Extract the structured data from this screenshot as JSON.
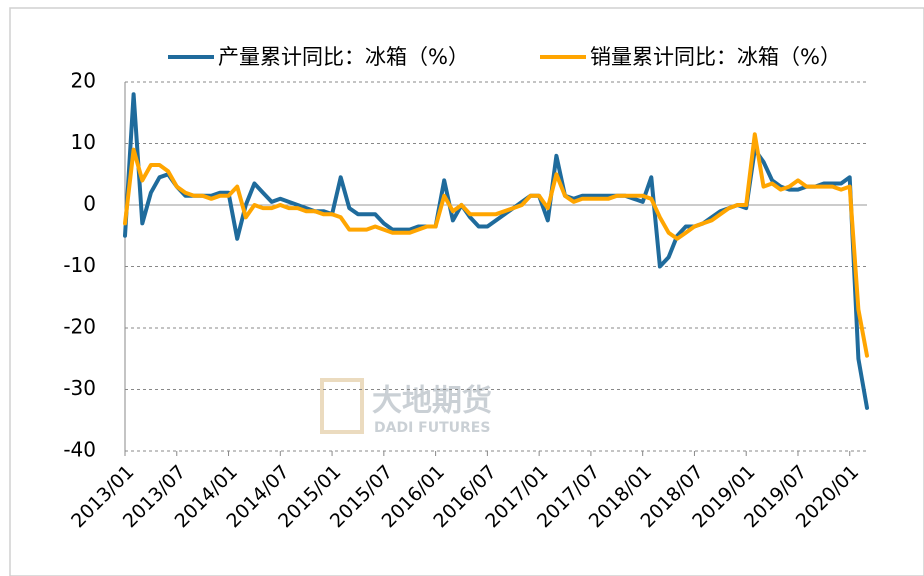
{
  "chart_data": {
    "type": "line",
    "categories": [
      "2013/01",
      null,
      null,
      null,
      null,
      null,
      "2013/07",
      null,
      null,
      null,
      null,
      null,
      "2014/01",
      null,
      null,
      null,
      null,
      null,
      "2014/07",
      null,
      null,
      null,
      null,
      null,
      "2015/01",
      null,
      null,
      null,
      null,
      null,
      "2015/07",
      null,
      null,
      null,
      null,
      null,
      "2016/01",
      null,
      null,
      null,
      null,
      null,
      "2016/07",
      null,
      null,
      null,
      null,
      null,
      "2017/01",
      null,
      null,
      null,
      null,
      null,
      "2017/07",
      null,
      null,
      null,
      null,
      null,
      "2018/01",
      null,
      null,
      null,
      null,
      null,
      "2018/07",
      null,
      null,
      null,
      null,
      null,
      "2019/01",
      null,
      null,
      null,
      null,
      null,
      "2019/07",
      null,
      null,
      null,
      null,
      null,
      "2020/01",
      null,
      null
    ],
    "series": [
      {
        "name": "产量累计同比：冰箱（%）",
        "color": "#1f6b9c",
        "values": [
          -5,
          18,
          -3,
          2,
          4.5,
          5,
          3,
          1.5,
          1.5,
          1.5,
          1.5,
          2,
          2,
          -5.5,
          0,
          3.5,
          2,
          0.5,
          1,
          0.5,
          0,
          -0.5,
          -1,
          -1,
          -1.5,
          4.5,
          -0.5,
          -1.5,
          -1.5,
          -1.5,
          -3,
          -4,
          -4,
          -4,
          -3.5,
          -3.5,
          -3.5,
          4,
          -2.5,
          0,
          -2,
          -3.5,
          -3.5,
          -2.5,
          -1.5,
          -0.5,
          0.5,
          1.5,
          1.5,
          -2.5,
          8,
          1.5,
          1,
          1.5,
          1.5,
          1.5,
          1.5,
          1.5,
          1.5,
          1,
          0.5,
          4.5,
          -10,
          -8.5,
          -5,
          -3.5,
          -3.5,
          -3,
          -2,
          -1,
          -0.5,
          0,
          -0.5,
          9,
          7,
          4,
          3,
          2.5,
          2.5,
          3,
          3,
          3.5,
          3.5,
          3.5,
          4.5,
          -25,
          -33
        ]
      },
      {
        "name": "销量累计同比：冰箱（%）",
        "color": "#ffa500",
        "values": [
          -3,
          9,
          4,
          6.5,
          6.5,
          5.5,
          3,
          2,
          1.5,
          1.5,
          1,
          1.5,
          1.5,
          3,
          -2,
          0,
          -0.5,
          -0.5,
          0,
          -0.5,
          -0.5,
          -1,
          -1,
          -1.5,
          -1.5,
          -2,
          -4,
          -4,
          -4,
          -3.5,
          -4,
          -4.5,
          -4.5,
          -4.5,
          -4,
          -3.5,
          -3.5,
          1.5,
          -1,
          0,
          -1.5,
          -1.5,
          -1.5,
          -1.5,
          -1,
          -0.5,
          0,
          1.5,
          1.5,
          -0.5,
          5,
          1.5,
          0.5,
          1,
          1,
          1,
          1,
          1.5,
          1.5,
          1.5,
          1.5,
          1,
          -2,
          -4.5,
          -5.5,
          -4.5,
          -3.5,
          -3,
          -2.5,
          -1.5,
          -0.5,
          0,
          0,
          11.5,
          3,
          3.5,
          2.5,
          3,
          4,
          3,
          3,
          3,
          3,
          2.5,
          3,
          -17,
          -24.5
        ]
      }
    ],
    "ylim": [
      -40,
      20
    ],
    "yticks": [
      -40,
      -30,
      -20,
      -10,
      0,
      10,
      20
    ],
    "grid": true,
    "watermark": [
      "大地期货",
      "DADI FUTURES"
    ]
  }
}
